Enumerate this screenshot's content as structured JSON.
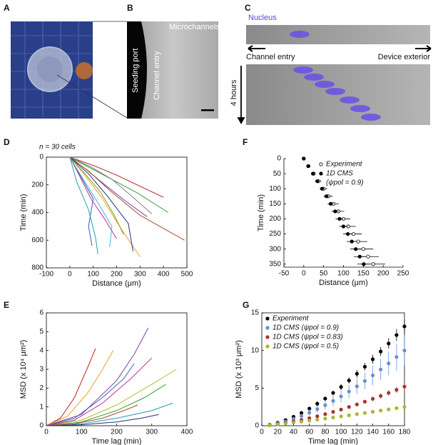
{
  "panels": [
    {
      "label": "A"
    },
    {
      "label": "B",
      "texts": [
        "Seeding port",
        "Channel entry",
        "Microchannels"
      ]
    },
    {
      "label": "C",
      "texts": [
        "Nucleus",
        "Channel entry",
        "Device exterior",
        "4 hours"
      ]
    }
  ],
  "chart_data": [
    {
      "type": "line",
      "panel_label": "D",
      "annotation": "n = 30 cells",
      "xlabel": "Distance (μm)",
      "ylabel": "Time (min)",
      "box": true,
      "xlim": [
        -100,
        500
      ],
      "xticks": [
        -100,
        0,
        100,
        200,
        300,
        400,
        500
      ],
      "ylim": [
        800,
        0
      ],
      "yticks": [
        0,
        200,
        400,
        600,
        800
      ],
      "series": [
        {
          "color": "#b22222",
          "x": [
            0,
            100,
            200,
            300,
            400
          ],
          "values": [
            0,
            60,
            130,
            210,
            290
          ]
        },
        {
          "color": "#3a9a3a",
          "x": [
            0,
            90,
            190,
            290,
            420
          ],
          "values": [
            0,
            80,
            170,
            260,
            400
          ]
        },
        {
          "color": "#7b3fa0",
          "x": [
            0,
            70,
            150,
            240,
            330
          ],
          "values": [
            0,
            90,
            200,
            320,
            430
          ]
        },
        {
          "color": "#a0522d",
          "x": [
            0,
            80,
            170,
            300,
            490
          ],
          "values": [
            0,
            100,
            240,
            420,
            600
          ]
        },
        {
          "color": "#3060c0",
          "x": [
            0,
            50,
            100,
            80,
            95
          ],
          "values": [
            0,
            150,
            300,
            500,
            640
          ]
        },
        {
          "color": "#e8a020",
          "x": [
            0,
            60,
            140,
            220,
            300
          ],
          "values": [
            0,
            120,
            300,
            520,
            720
          ]
        },
        {
          "color": "#c03090",
          "x": [
            0,
            40,
            90,
            150,
            200
          ],
          "values": [
            0,
            130,
            300,
            450,
            590
          ]
        },
        {
          "color": "#20a0a0",
          "x": [
            0,
            30,
            80,
            110,
            120
          ],
          "values": [
            0,
            180,
            380,
            580,
            700
          ]
        },
        {
          "color": "#8a9a20",
          "x": [
            0,
            60,
            130,
            190,
            230
          ],
          "values": [
            0,
            110,
            250,
            420,
            560
          ]
        },
        {
          "color": "#203080",
          "x": [
            0,
            80,
            160,
            250,
            270
          ],
          "values": [
            0,
            120,
            280,
            480,
            680
          ]
        },
        {
          "color": "#40b8e0",
          "x": [
            0,
            50,
            120,
            180,
            170
          ],
          "values": [
            0,
            140,
            330,
            500,
            650
          ]
        },
        {
          "color": "#808080",
          "x": [
            0,
            90,
            180,
            270,
            350
          ],
          "values": [
            0,
            70,
            160,
            290,
            410
          ]
        }
      ]
    },
    {
      "type": "line",
      "panel_label": "E",
      "xlabel": "Time lag (min)",
      "ylabel": "MSD (x 10⁴ μm²)",
      "box": true,
      "xlim": [
        0,
        400
      ],
      "xticks": [
        0,
        100,
        200,
        300,
        400
      ],
      "ylim": [
        0,
        6
      ],
      "yticks": [
        0,
        1,
        2,
        3,
        4,
        5,
        6
      ],
      "series": [
        {
          "color": "#c02020",
          "x": [
            0,
            40,
            80,
            120,
            140
          ],
          "values": [
            0,
            0.4,
            1.5,
            3.2,
            4.1
          ]
        },
        {
          "color": "#7b3fa0",
          "x": [
            0,
            100,
            200,
            250,
            290
          ],
          "values": [
            0,
            0.6,
            2.4,
            3.8,
            5.2
          ]
        },
        {
          "color": "#e8a020",
          "x": [
            0,
            60,
            120,
            160,
            190
          ],
          "values": [
            0,
            0.5,
            1.8,
            3.0,
            4.0
          ]
        },
        {
          "color": "#a8c030",
          "x": [
            0,
            100,
            200,
            300,
            370
          ],
          "values": [
            0,
            0.3,
            1.1,
            2.2,
            3.0
          ]
        },
        {
          "color": "#3060c0",
          "x": [
            0,
            80,
            160,
            220,
            250
          ],
          "values": [
            0,
            0.4,
            1.5,
            2.5,
            3.3
          ]
        },
        {
          "color": "#3a9a3a",
          "x": [
            0,
            100,
            200,
            280,
            340
          ],
          "values": [
            0,
            0.2,
            0.8,
            1.5,
            2.2
          ]
        },
        {
          "color": "#c03090",
          "x": [
            0,
            80,
            160,
            240,
            300
          ],
          "values": [
            0,
            0.3,
            1.2,
            2.5,
            3.6
          ]
        },
        {
          "color": "#20a0a0",
          "x": [
            0,
            100,
            200,
            300,
            360
          ],
          "values": [
            0,
            0.1,
            0.4,
            0.8,
            1.2
          ]
        },
        {
          "color": "#a0522d",
          "x": [
            0,
            80,
            160,
            220,
            260
          ],
          "values": [
            0,
            0.1,
            0.4,
            0.8,
            1.1
          ]
        },
        {
          "color": "#203080",
          "x": [
            0,
            100,
            200,
            270,
            320
          ],
          "values": [
            0,
            0.05,
            0.2,
            0.4,
            0.6
          ]
        }
      ]
    },
    {
      "type": "scatter",
      "panel_label": "F",
      "xlabel": "Distance (μm)",
      "ylabel": "Time (min)",
      "box": false,
      "legend": "upper left",
      "legend_note": "(ψpol = 0.9)",
      "xlim": [
        -50,
        250
      ],
      "xticks": [
        -50,
        0,
        50,
        100,
        150,
        200,
        250
      ],
      "ylim": [
        360,
        0
      ],
      "yticks": [
        0,
        50,
        100,
        150,
        200,
        250,
        300,
        350
      ],
      "series": [
        {
          "name": "Experiment",
          "color": "#000000",
          "filled": false,
          "x": [
            0,
            12,
            25,
            37,
            50,
            62,
            75,
            87,
            100,
            112,
            125,
            137,
            150,
            162,
            175
          ],
          "xerr": [
            0,
            3,
            5,
            7,
            9,
            11,
            13,
            15,
            17,
            19,
            21,
            23,
            25,
            27,
            30
          ],
          "values": [
            0,
            25,
            50,
            75,
            100,
            125,
            150,
            175,
            200,
            225,
            250,
            275,
            300,
            325,
            350
          ]
        },
        {
          "name": "1D CMS",
          "color": "#000000",
          "filled": true,
          "x": [
            0,
            11,
            23,
            34,
            46,
            57,
            68,
            79,
            90,
            100,
            111,
            121,
            131,
            141,
            151
          ],
          "xerr": [
            0,
            2,
            4,
            5,
            6,
            7,
            8,
            9,
            10,
            11,
            12,
            13,
            14,
            15,
            16
          ],
          "values": [
            0,
            25,
            50,
            75,
            100,
            125,
            150,
            175,
            200,
            225,
            250,
            275,
            300,
            325,
            350
          ]
        }
      ]
    },
    {
      "type": "scatter",
      "panel_label": "G",
      "xlabel": "Time lag (min)",
      "ylabel": "MSD (x 10³ μm²)",
      "box": true,
      "legend": "upper left",
      "xlim": [
        0,
        180
      ],
      "xticks": [
        0,
        20,
        40,
        60,
        80,
        100,
        120,
        140,
        160,
        180
      ],
      "ylim": [
        0,
        15
      ],
      "yticks": [
        0,
        5,
        10,
        15
      ],
      "x": [
        10,
        20,
        30,
        40,
        50,
        60,
        70,
        80,
        90,
        100,
        110,
        120,
        130,
        140,
        150,
        160,
        170,
        180
      ],
      "series": [
        {
          "name": "Experiment",
          "color": "#000000",
          "filled": true,
          "values": [
            0.13,
            0.39,
            0.75,
            1.19,
            1.7,
            2.28,
            2.92,
            3.6,
            4.36,
            5.15,
            6.01,
            6.9,
            7.84,
            8.83,
            9.86,
            10.93,
            12.05,
            13.2
          ],
          "yerr": [
            0.1,
            0.1,
            0.1,
            0.2,
            0.2,
            0.2,
            0.3,
            0.3,
            0.3,
            0.4,
            0.4,
            0.5,
            0.5,
            0.6,
            0.6,
            0.7,
            0.8,
            0.9
          ]
        },
        {
          "name": "1D CMS (ψpol = 0.9)",
          "color": "#6a8fd0",
          "filled": true,
          "values": [
            0.1,
            0.3,
            0.57,
            0.9,
            1.29,
            1.73,
            2.21,
            2.73,
            3.3,
            3.9,
            4.55,
            5.23,
            5.94,
            6.69,
            7.47,
            8.28,
            9.13,
            10.0
          ],
          "yerr": [
            0.1,
            0.1,
            0.2,
            0.3,
            0.3,
            0.4,
            0.5,
            0.6,
            0.7,
            0.8,
            0.9,
            1.0,
            1.1,
            1.3,
            1.4,
            1.6,
            1.8,
            2.0
          ]
        },
        {
          "name": "1D CMS (ψpol = 0.83)",
          "color": "#b03030",
          "filled": true,
          "values": [
            0.07,
            0.19,
            0.35,
            0.55,
            0.76,
            1.0,
            1.26,
            1.54,
            1.84,
            2.15,
            2.49,
            2.83,
            3.19,
            3.57,
            3.96,
            4.36,
            4.77,
            5.2
          ],
          "yerr": [
            0.05,
            0.05,
            0.05,
            0.1,
            0.1,
            0.1,
            0.1,
            0.15,
            0.15,
            0.2,
            0.2,
            0.25,
            0.25,
            0.3,
            0.3,
            0.35,
            0.4,
            0.5
          ]
        },
        {
          "name": "1D CMS (ψpol = 0.5)",
          "color": "#a8b830",
          "filled": true,
          "values": [
            0.08,
            0.18,
            0.29,
            0.41,
            0.54,
            0.67,
            0.81,
            0.95,
            1.09,
            1.24,
            1.39,
            1.54,
            1.69,
            1.85,
            2.01,
            2.17,
            2.34,
            2.5
          ],
          "yerr": [
            0.05,
            0.05,
            0.05,
            0.05,
            0.05,
            0.05,
            0.1,
            0.1,
            0.1,
            0.1,
            0.1,
            0.1,
            0.15,
            0.15,
            0.15,
            0.15,
            0.2,
            0.2
          ]
        }
      ]
    }
  ]
}
